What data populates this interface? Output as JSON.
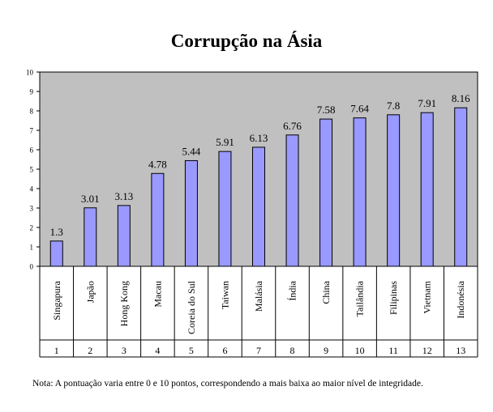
{
  "chart_data": {
    "type": "bar",
    "title": "Corrupção na Ásia",
    "categories": [
      "Singapura",
      "Japão",
      "Hong Kong",
      "Macau",
      "Coreia do Sul",
      "Taiwan",
      "Malásia",
      "Índia",
      "China",
      "Tailândia",
      "Filipinas",
      "Vietnam",
      "Indonésia"
    ],
    "ranks": [
      "1",
      "2",
      "3",
      "4",
      "5",
      "6",
      "7",
      "8",
      "9",
      "10",
      "11",
      "12",
      "13"
    ],
    "values": [
      1.3,
      3.01,
      3.13,
      4.78,
      5.44,
      5.91,
      6.13,
      6.76,
      7.58,
      7.64,
      7.8,
      7.91,
      8.16
    ],
    "value_labels": [
      "1.3",
      "3.01",
      "3.13",
      "4.78",
      "5.44",
      "5.91",
      "6.13",
      "6.76",
      "7.58",
      "7.64",
      "7.8",
      "7.91",
      "8.16"
    ],
    "ylim": [
      0,
      10
    ],
    "yticks": [
      "0",
      "1",
      "2",
      "3",
      "4",
      "5",
      "6",
      "7",
      "8",
      "9",
      "10"
    ],
    "grid": false,
    "colors": {
      "plot_bg": "#c0c0c0",
      "bar": "#9999ff",
      "bar_border": "#000000"
    },
    "note": "Nota: A pontuação varia entre 0 e 10 pontos, correspondendo a mais baixa ao maior nível de integridade."
  }
}
